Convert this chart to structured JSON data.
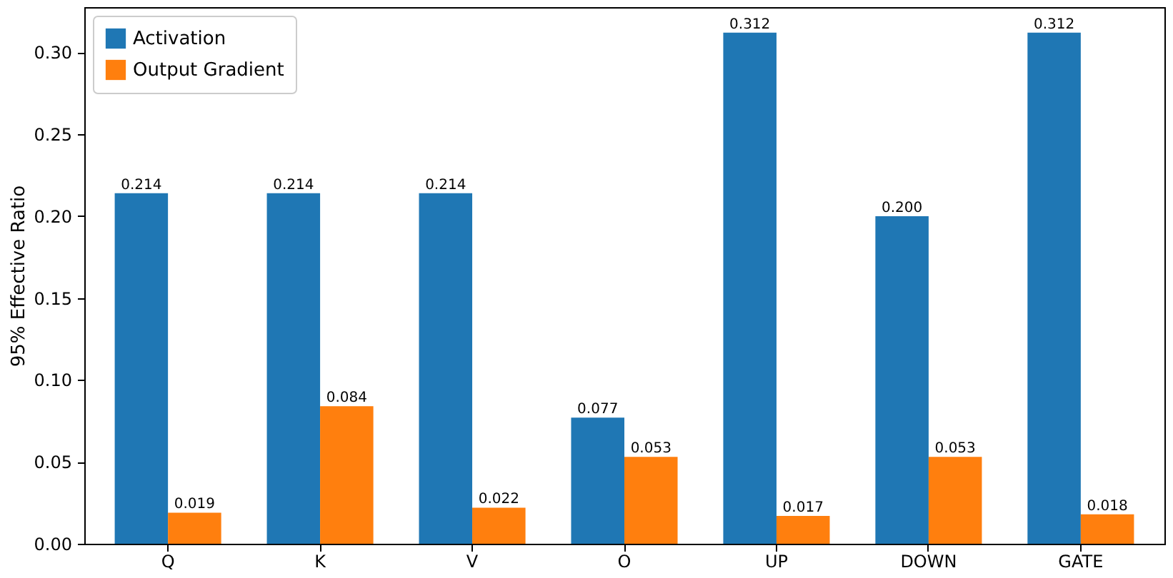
{
  "chart_data": {
    "type": "bar",
    "ylabel": "95% Effective Ratio",
    "categories": [
      "Q",
      "K",
      "V",
      "O",
      "UP",
      "DOWN",
      "GATE"
    ],
    "series": [
      {
        "name": "Activation",
        "color": "#1f77b4",
        "values": [
          0.214,
          0.214,
          0.214,
          0.077,
          0.312,
          0.2,
          0.312
        ],
        "value_labels": [
          "0.214",
          "0.214",
          "0.214",
          "0.077",
          "0.312",
          "0.200",
          "0.312"
        ]
      },
      {
        "name": "Output Gradient",
        "color": "#ff7f0e",
        "values": [
          0.019,
          0.084,
          0.022,
          0.053,
          0.017,
          0.053,
          0.018
        ],
        "value_labels": [
          "0.019",
          "0.084",
          "0.022",
          "0.053",
          "0.017",
          "0.053",
          "0.018"
        ]
      }
    ],
    "ylim": [
      0,
      0.3276
    ],
    "yticks": [
      {
        "value": 0,
        "label": "0.00"
      },
      {
        "value": 0.05,
        "label": "0.05"
      },
      {
        "value": 0.1,
        "label": "0.10"
      },
      {
        "value": 0.15,
        "label": "0.15"
      },
      {
        "value": 0.2,
        "label": "0.20"
      },
      {
        "value": 0.25,
        "label": "0.25"
      },
      {
        "value": 0.3,
        "label": "0.30"
      }
    ],
    "grid": false,
    "legend": "top left"
  }
}
